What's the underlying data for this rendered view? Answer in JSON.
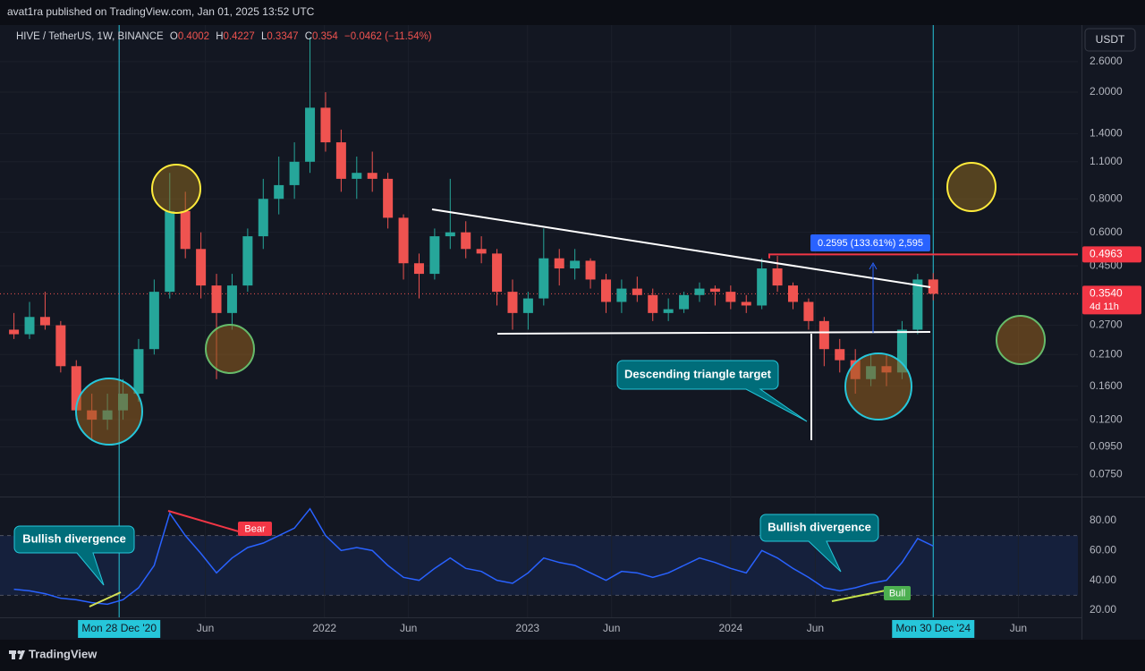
{
  "header": "avat1ra published on TradingView.com, Jan 01, 2025 13:52 UTC",
  "footer": "TradingView",
  "chart_data": [
    {
      "type": "candlestick",
      "title": "HIVE / TetherUS, 1W, BINANCE",
      "legend_labels": {
        "open": "O",
        "high": "H",
        "low": "L",
        "close": "C"
      },
      "change_label": "−0.0462 (−11.54%)",
      "currency": "USDT",
      "countdown": "4d 11h",
      "measure_label": "0.2595 (133.61%) 2,595",
      "annotations": [
        "Descending triangle target"
      ],
      "x": [
        "2020-06-22",
        "2020-07-20",
        "2020-08-17",
        "2020-09-14",
        "2020-10-12",
        "2020-11-09",
        "2020-12-07",
        "2021-01-04",
        "2021-02-01",
        "2021-03-01",
        "2021-03-29",
        "2021-04-26",
        "2021-05-24",
        "2021-06-21",
        "2021-07-19",
        "2021-08-16",
        "2021-09-13",
        "2021-10-11",
        "2021-11-08",
        "2021-12-06",
        "2022-01-03",
        "2022-01-31",
        "2022-02-28",
        "2022-03-28",
        "2022-04-25",
        "2022-05-23",
        "2022-06-20",
        "2022-07-18",
        "2022-08-15",
        "2022-09-12",
        "2022-10-10",
        "2022-11-07",
        "2022-12-05",
        "2023-01-02",
        "2023-01-30",
        "2023-02-27",
        "2023-03-27",
        "2023-04-24",
        "2023-05-22",
        "2023-06-19",
        "2023-07-17",
        "2023-08-14",
        "2023-09-11",
        "2023-10-09",
        "2023-11-06",
        "2023-12-04",
        "2024-01-01",
        "2024-01-29",
        "2024-02-26",
        "2024-03-25",
        "2024-04-22",
        "2024-05-20",
        "2024-06-17",
        "2024-07-15",
        "2024-08-12",
        "2024-09-09",
        "2024-10-07",
        "2024-11-04",
        "2024-12-02",
        "2024-12-30"
      ],
      "open": [
        0.26,
        0.25,
        0.29,
        0.27,
        0.19,
        0.13,
        0.12,
        0.13,
        0.15,
        0.22,
        0.36,
        0.72,
        0.52,
        0.38,
        0.3,
        0.38,
        0.58,
        0.8,
        0.9,
        1.1,
        1.75,
        1.3,
        0.95,
        1.0,
        0.95,
        0.68,
        0.46,
        0.42,
        0.58,
        0.6,
        0.52,
        0.5,
        0.36,
        0.3,
        0.34,
        0.48,
        0.44,
        0.47,
        0.4,
        0.33,
        0.37,
        0.35,
        0.3,
        0.31,
        0.35,
        0.37,
        0.36,
        0.33,
        0.32,
        0.44,
        0.38,
        0.33,
        0.28,
        0.22,
        0.2,
        0.17,
        0.19,
        0.18,
        0.26,
        0.4002
      ],
      "high": [
        0.3,
        0.33,
        0.36,
        0.28,
        0.2,
        0.15,
        0.15,
        0.17,
        0.24,
        0.4,
        1.0,
        0.85,
        0.6,
        0.42,
        0.42,
        0.62,
        0.95,
        1.15,
        1.3,
        3.2,
        2.0,
        1.45,
        1.15,
        1.2,
        1.0,
        0.7,
        0.5,
        0.62,
        0.95,
        0.66,
        0.58,
        0.52,
        0.4,
        0.36,
        0.62,
        0.52,
        0.52,
        0.48,
        0.42,
        0.4,
        0.41,
        0.37,
        0.34,
        0.36,
        0.39,
        0.38,
        0.38,
        0.35,
        0.48,
        0.49,
        0.39,
        0.34,
        0.29,
        0.24,
        0.22,
        0.21,
        0.21,
        0.28,
        0.42,
        0.4227
      ],
      "low": [
        0.24,
        0.24,
        0.26,
        0.18,
        0.12,
        0.1,
        0.11,
        0.12,
        0.14,
        0.21,
        0.34,
        0.48,
        0.34,
        0.17,
        0.26,
        0.36,
        0.52,
        0.7,
        0.8,
        1.0,
        1.2,
        0.85,
        0.8,
        0.85,
        0.62,
        0.4,
        0.34,
        0.4,
        0.52,
        0.48,
        0.46,
        0.32,
        0.26,
        0.26,
        0.32,
        0.38,
        0.4,
        0.37,
        0.3,
        0.3,
        0.33,
        0.28,
        0.28,
        0.3,
        0.33,
        0.32,
        0.31,
        0.3,
        0.31,
        0.36,
        0.31,
        0.26,
        0.19,
        0.18,
        0.15,
        0.16,
        0.16,
        0.17,
        0.25,
        0.3347
      ],
      "close": [
        0.25,
        0.29,
        0.27,
        0.19,
        0.13,
        0.12,
        0.13,
        0.15,
        0.22,
        0.36,
        0.72,
        0.52,
        0.38,
        0.3,
        0.38,
        0.58,
        0.8,
        0.9,
        1.1,
        1.75,
        1.3,
        0.95,
        1.0,
        0.95,
        0.68,
        0.46,
        0.42,
        0.58,
        0.6,
        0.52,
        0.5,
        0.36,
        0.3,
        0.34,
        0.48,
        0.44,
        0.47,
        0.4,
        0.33,
        0.37,
        0.35,
        0.3,
        0.31,
        0.35,
        0.37,
        0.36,
        0.33,
        0.32,
        0.44,
        0.38,
        0.33,
        0.28,
        0.22,
        0.2,
        0.17,
        0.19,
        0.18,
        0.26,
        0.4,
        0.354
      ],
      "up_color": "#26a69a",
      "down_color": "#ef5350",
      "log_scale": true,
      "grid": true,
      "ylim": [
        0.062,
        3.56
      ],
      "yticks": [
        {
          "value": 2.6,
          "label": "2.6000"
        },
        {
          "value": 2.0,
          "label": "2.0000"
        },
        {
          "value": 1.4,
          "label": "1.4000"
        },
        {
          "value": 1.1,
          "label": "1.1000"
        },
        {
          "value": 0.8,
          "label": "0.8000"
        },
        {
          "value": 0.6,
          "label": "0.6000"
        },
        {
          "value": 0.45,
          "label": "0.4500"
        },
        {
          "value": 0.27,
          "label": "0.2700"
        },
        {
          "value": 0.21,
          "label": "0.2100"
        },
        {
          "value": 0.16,
          "label": "0.1600"
        },
        {
          "value": 0.12,
          "label": "0.1200"
        },
        {
          "value": 0.095,
          "label": "0.0950"
        },
        {
          "value": 0.075,
          "label": "0.0750"
        }
      ],
      "price_labels": [
        {
          "value": 0.4963,
          "label": "0.4963"
        },
        {
          "value": 0.354,
          "label": "0.3540"
        }
      ],
      "xlim": [
        "2020-06-13",
        "2025-09-16"
      ],
      "xticks": [
        {
          "value": "2020-12-28",
          "label": "Mon 28 Dec '20"
        },
        {
          "value": "2021-06-01",
          "label": "Jun"
        },
        {
          "value": "2022-01-01",
          "label": "2022"
        },
        {
          "value": "2022-06-01",
          "label": "Jun"
        },
        {
          "value": "2023-01-01",
          "label": "2023"
        },
        {
          "value": "2023-06-01",
          "label": "Jun"
        },
        {
          "value": "2024-01-01",
          "label": "2024"
        },
        {
          "value": "2024-06-01",
          "label": "Jun"
        },
        {
          "value": "2024-12-30",
          "label": "Mon 30 Dec '24"
        },
        {
          "value": "2025-06-01",
          "label": "Jun"
        }
      ]
    },
    {
      "type": "line",
      "values": [
        34,
        33,
        31,
        28,
        27,
        25,
        24,
        27,
        35,
        50,
        85,
        70,
        58,
        45,
        55,
        62,
        65,
        70,
        75,
        88,
        70,
        60,
        62,
        60,
        50,
        42,
        40,
        48,
        55,
        48,
        46,
        40,
        38,
        45,
        55,
        52,
        50,
        45,
        40,
        46,
        45,
        42,
        45,
        50,
        55,
        52,
        48,
        45,
        60,
        55,
        48,
        42,
        35,
        33,
        35,
        38,
        40,
        52,
        68,
        63
      ],
      "color": "#2962ff",
      "band": [
        30,
        70
      ],
      "ylim": [
        15.2,
        95.6
      ],
      "yticks": [
        {
          "value": 80,
          "label": "80.00"
        },
        {
          "value": 60,
          "label": "60.00"
        },
        {
          "value": 40,
          "label": "40.00"
        },
        {
          "value": 20,
          "label": "20.00"
        }
      ],
      "annotations": [
        "Bullish divergence",
        "Bear",
        "Bullish divergence",
        "Bull"
      ]
    }
  ]
}
